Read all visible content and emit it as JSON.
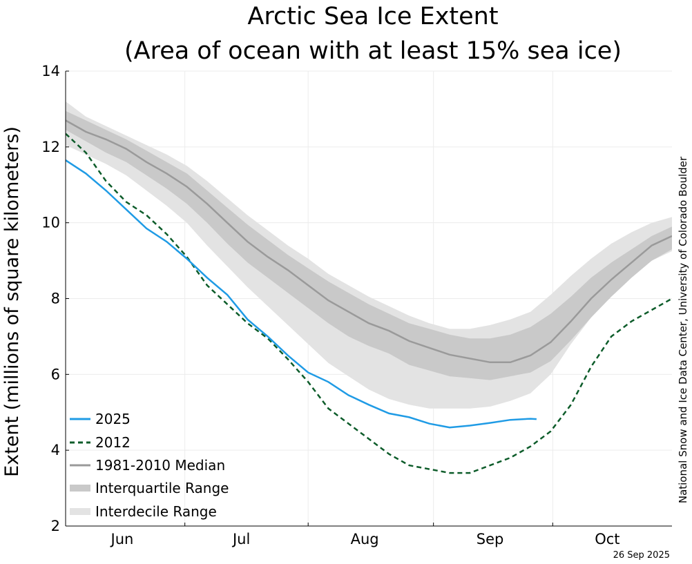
{
  "chart_data": {
    "type": "line",
    "title": "Arctic Sea Ice Extent",
    "subtitle": "(Area of ocean with at least 15% sea ice)",
    "ylabel": "Extent (millions of square kilometers)",
    "xlabel": "",
    "ylim": [
      2,
      14
    ],
    "yticks": [
      2,
      4,
      6,
      8,
      10,
      12,
      14
    ],
    "xlim_day": [
      0,
      150
    ],
    "month_labels": [
      {
        "label": "Jun",
        "day": 14
      },
      {
        "label": "Jul",
        "day": 43.5
      },
      {
        "label": "Aug",
        "day": 74
      },
      {
        "label": "Sep",
        "day": 105
      },
      {
        "label": "Oct",
        "day": 134
      }
    ],
    "month_boundaries_day": [
      29.5,
      60,
      91,
      120.5
    ],
    "grid": true,
    "legend_position": "lower-left",
    "credit": "National Snow and Ice Data Center, University of Colorado Boulder",
    "date_stamp": "26 Sep 2025",
    "legend": {
      "s2025": "2025",
      "s2012": "2012",
      "median": "1981-2010 Median",
      "iqr": "Interquartile Range",
      "idr": "Interdecile Range"
    },
    "colors": {
      "s2025": "#1f9be5",
      "s2012": "#0d5c2a",
      "median": "#9a9a9a",
      "iqr": "#c9c9c9",
      "idr": "#e3e3e3",
      "grid": "#ececec"
    },
    "x_days": [
      0,
      5,
      10,
      15,
      20,
      25,
      30,
      35,
      40,
      45,
      50,
      55,
      60,
      65,
      70,
      75,
      80,
      85,
      90,
      95,
      100,
      105,
      110,
      115,
      120,
      125,
      130,
      135,
      140,
      145,
      150
    ],
    "series": [
      {
        "name": "1981-2010 Median",
        "key": "median",
        "values": [
          12.7,
          12.4,
          12.2,
          11.95,
          11.6,
          11.3,
          10.95,
          10.5,
          10.0,
          9.5,
          9.1,
          8.75,
          8.35,
          7.95,
          7.65,
          7.35,
          7.15,
          6.88,
          6.7,
          6.52,
          6.42,
          6.32,
          6.32,
          6.5,
          6.85,
          7.4,
          8.0,
          8.5,
          8.95,
          9.4,
          9.65
        ]
      },
      {
        "name": "2025",
        "key": "s2025",
        "x": [
          0,
          5,
          10,
          15,
          20,
          25,
          30,
          35,
          40,
          45,
          50,
          55,
          60,
          65,
          70,
          75,
          80,
          85,
          90,
          95,
          100,
          105,
          110,
          115,
          116.5
        ],
        "values": [
          11.65,
          11.3,
          10.85,
          10.35,
          9.85,
          9.5,
          9.05,
          8.55,
          8.1,
          7.45,
          7.0,
          6.5,
          6.05,
          5.8,
          5.45,
          5.2,
          4.97,
          4.87,
          4.7,
          4.6,
          4.65,
          4.72,
          4.8,
          4.83,
          4.82
        ]
      },
      {
        "name": "2012",
        "key": "s2012",
        "values": [
          12.35,
          11.85,
          11.1,
          10.55,
          10.2,
          9.7,
          9.1,
          8.35,
          7.85,
          7.35,
          6.95,
          6.4,
          5.8,
          5.1,
          4.7,
          4.3,
          3.9,
          3.6,
          3.5,
          3.4,
          3.4,
          3.6,
          3.8,
          4.1,
          4.5,
          5.2,
          6.2,
          7.0,
          7.4,
          7.7,
          8.0
        ]
      }
    ],
    "bands": [
      {
        "name": "Interdecile Range",
        "key": "idr",
        "low": [
          12.05,
          11.8,
          11.55,
          11.25,
          10.85,
          10.45,
          10.0,
          9.4,
          8.85,
          8.3,
          7.8,
          7.3,
          6.8,
          6.3,
          5.95,
          5.6,
          5.35,
          5.2,
          5.1,
          5.1,
          5.1,
          5.15,
          5.3,
          5.5,
          6.0,
          6.8,
          7.5,
          8.1,
          8.6,
          9.0,
          9.25
        ],
        "high": [
          13.2,
          12.8,
          12.55,
          12.3,
          12.05,
          11.8,
          11.5,
          11.1,
          10.65,
          10.2,
          9.8,
          9.4,
          9.05,
          8.65,
          8.35,
          8.05,
          7.8,
          7.55,
          7.35,
          7.2,
          7.2,
          7.3,
          7.45,
          7.65,
          8.1,
          8.6,
          9.05,
          9.45,
          9.75,
          10.0,
          10.15
        ]
      },
      {
        "name": "Interquartile Range",
        "key": "iqr",
        "low": [
          12.45,
          12.15,
          11.85,
          11.6,
          11.25,
          10.9,
          10.5,
          10.0,
          9.45,
          8.95,
          8.55,
          8.15,
          7.75,
          7.35,
          7.0,
          6.75,
          6.55,
          6.25,
          6.1,
          5.95,
          5.9,
          5.85,
          5.95,
          6.05,
          6.35,
          6.9,
          7.5,
          8.05,
          8.55,
          9.0,
          9.3
        ],
        "high": [
          12.95,
          12.7,
          12.45,
          12.2,
          11.9,
          11.6,
          11.3,
          10.85,
          10.4,
          9.95,
          9.55,
          9.15,
          8.8,
          8.45,
          8.15,
          7.85,
          7.6,
          7.35,
          7.2,
          7.05,
          6.95,
          6.95,
          7.05,
          7.25,
          7.6,
          8.05,
          8.55,
          8.95,
          9.3,
          9.65,
          9.9
        ]
      }
    ]
  }
}
